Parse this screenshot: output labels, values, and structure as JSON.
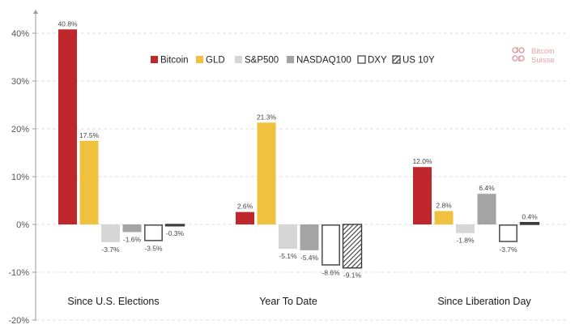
{
  "chart_data": {
    "type": "bar",
    "categories": [
      "Since U.S. Elections",
      "Year To Date",
      "Since Liberation Day"
    ],
    "series": [
      {
        "name": "Bitcoin",
        "values": [
          40.8,
          2.6,
          12.0
        ],
        "labels": [
          "40.8%",
          "2.6%",
          "12.0%"
        ],
        "color": "#c0272d",
        "style": "solid"
      },
      {
        "name": "GLD",
        "values": [
          17.5,
          21.3,
          2.8
        ],
        "labels": [
          "17.5%",
          "21.3%",
          "2.8%"
        ],
        "color": "#f0c03f",
        "style": "solid"
      },
      {
        "name": "S&P500",
        "values": [
          -3.7,
          -5.1,
          -1.8
        ],
        "labels": [
          "-3.7%",
          "-5.1%",
          "-1.8%"
        ],
        "color": "#d6d6d6",
        "style": "solid"
      },
      {
        "name": "NASDAQ100",
        "values": [
          -1.6,
          -5.4,
          6.4
        ],
        "labels": [
          "-1.6%",
          "-5.4%",
          "6.4%"
        ],
        "color": "#a4a4a4",
        "style": "solid"
      },
      {
        "name": "DXY",
        "values": [
          -3.5,
          -8.6,
          -3.7
        ],
        "labels": [
          "-3.5%",
          "-8.6%",
          "-3.7%"
        ],
        "color": "#555555",
        "style": "outline"
      },
      {
        "name": "US 10Y",
        "values": [
          -0.3,
          -9.1,
          0.4
        ],
        "labels": [
          "-0.3%",
          "-9.1%",
          "0.4%"
        ],
        "color": "#3a3a3a",
        "style": "hatched"
      }
    ],
    "y_ticks": [
      40,
      30,
      20,
      10,
      0,
      -10,
      -20
    ],
    "y_tick_labels": [
      "40%",
      "30%",
      "20%",
      "10%",
      "0%",
      "-10%",
      "-20%"
    ],
    "ylim": [
      -20,
      45
    ],
    "grid": "horizontal dashed",
    "legend_position": "top-center"
  },
  "logo": {
    "line1": "Bitcoin",
    "line2": "Suisse"
  }
}
